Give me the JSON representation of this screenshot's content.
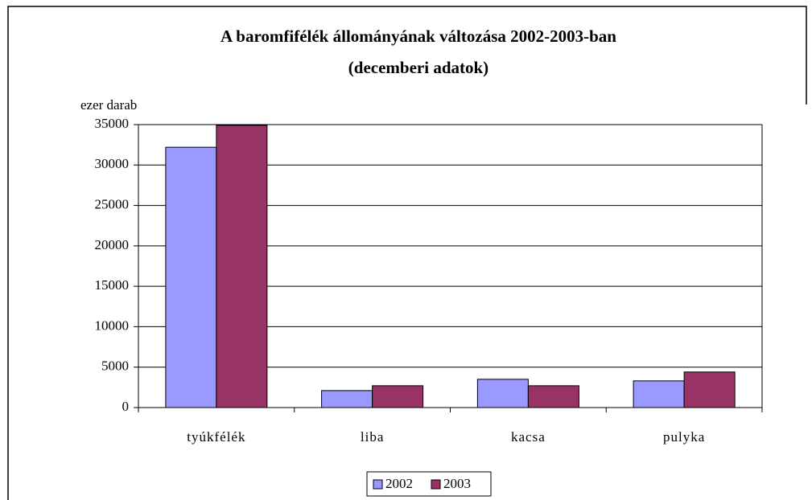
{
  "chart_data": {
    "type": "bar",
    "title": "A baromfifélék állományának változása 2002-2003-ban",
    "subtitle": "(decemberi adatok)",
    "y_label": "ezer darab",
    "categories": [
      "tyúkfélék",
      "liba",
      "kacsa",
      "pulyka"
    ],
    "series": [
      {
        "name": "2002",
        "color": "#9999ff",
        "values": [
          32200,
          2100,
          3500,
          3300
        ]
      },
      {
        "name": "2003",
        "color": "#993366",
        "values": [
          34900,
          2700,
          2700,
          4400
        ]
      }
    ],
    "ylim": [
      0,
      35000
    ],
    "yticks": [
      0,
      5000,
      10000,
      15000,
      20000,
      25000,
      30000,
      35000
    ],
    "grid": true,
    "legend": "bottom"
  }
}
